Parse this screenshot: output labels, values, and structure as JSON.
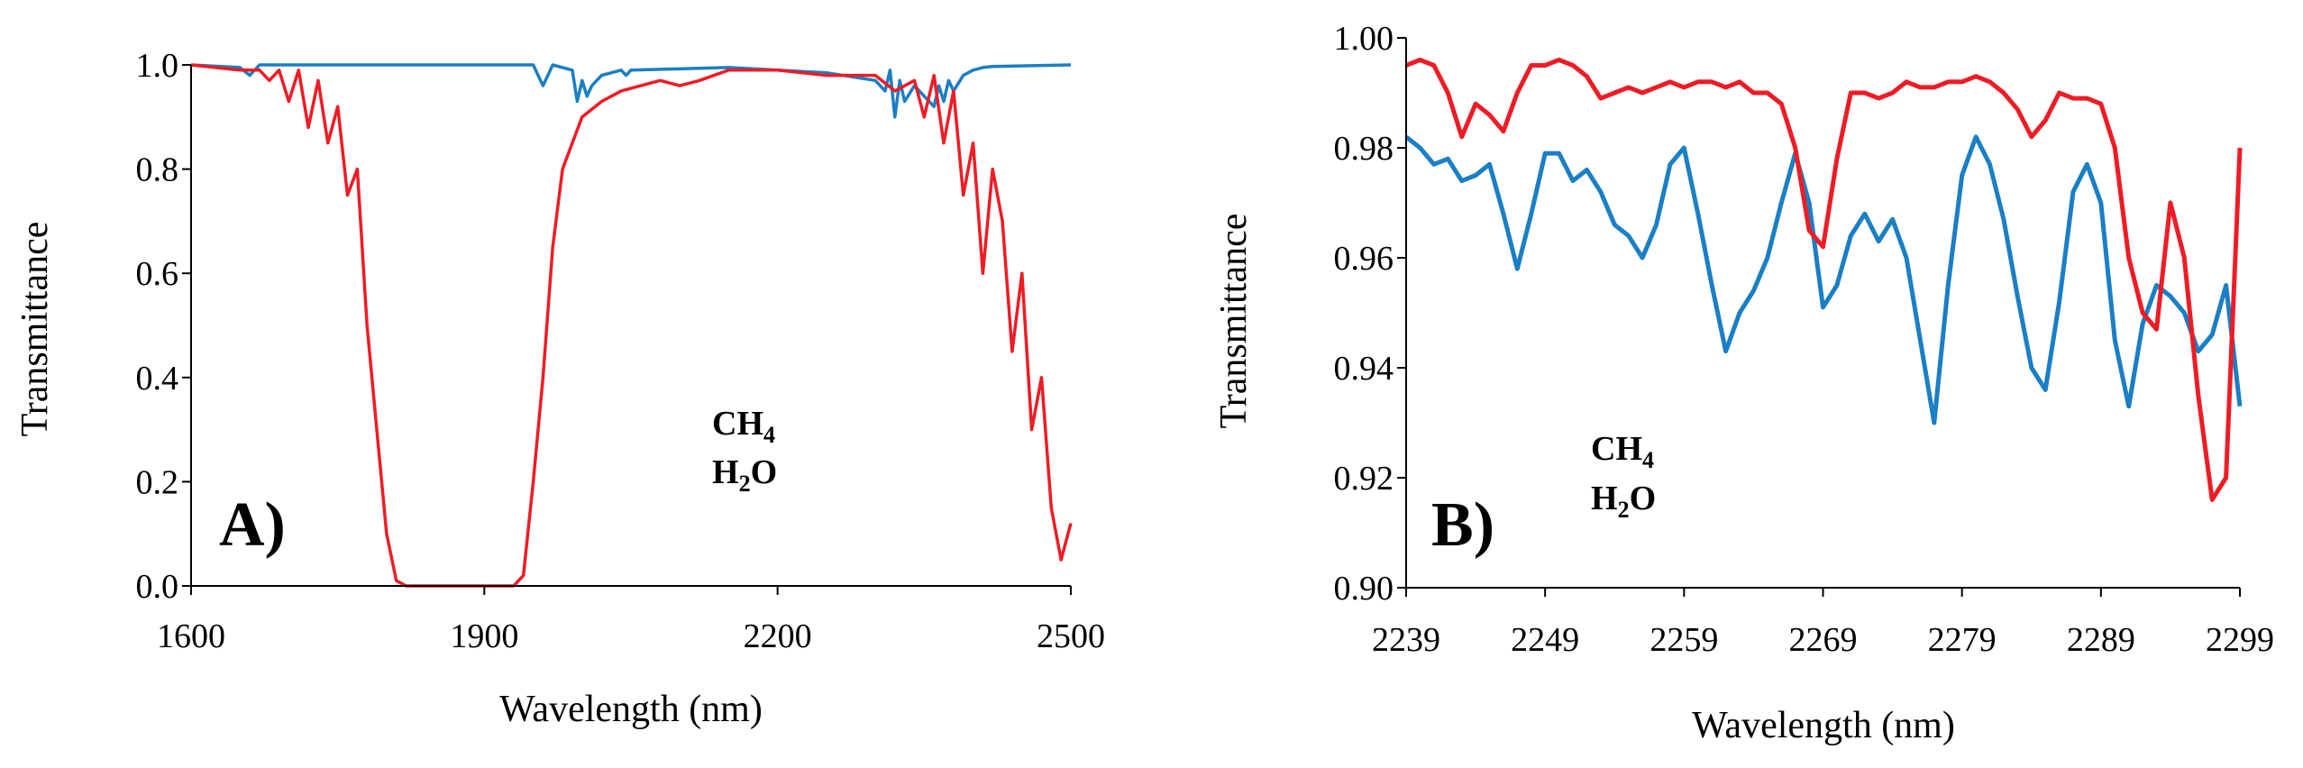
{
  "chart_data": [
    {
      "type": "line",
      "panel_label": "A)",
      "xlabel": "Wavelength (nm)",
      "ylabel": "Transmittance",
      "xlim": [
        1600,
        2500
      ],
      "ylim": [
        0.0,
        1.0
      ],
      "xticks": [
        "1600",
        "1900",
        "2200",
        "2500"
      ],
      "yticks": [
        "0.0",
        "0.2",
        "0.4",
        "0.6",
        "0.8",
        "1.0"
      ],
      "grid": false,
      "legend_position": "center-right",
      "series": [
        {
          "name": "CH4",
          "label_main": "CH",
          "label_sub": "4",
          "color": "#1a7fc4",
          "x": [
            1600,
            1650,
            1660,
            1665,
            1670,
            1700,
            1950,
            1955,
            1960,
            1965,
            1970,
            1990,
            1995,
            2000,
            2005,
            2010,
            2020,
            2040,
            2045,
            2050,
            2150,
            2200,
            2250,
            2300,
            2310,
            2315,
            2320,
            2325,
            2330,
            2340,
            2350,
            2360,
            2365,
            2370,
            2375,
            2380,
            2390,
            2400,
            2410,
            2420,
            2500
          ],
          "values": [
            1.0,
            0.995,
            0.98,
            0.99,
            1.0,
            1.0,
            1.0,
            0.98,
            0.96,
            0.98,
            1.0,
            0.99,
            0.93,
            0.97,
            0.94,
            0.96,
            0.98,
            0.99,
            0.98,
            0.99,
            0.995,
            0.99,
            0.985,
            0.97,
            0.95,
            0.99,
            0.9,
            0.97,
            0.93,
            0.96,
            0.94,
            0.92,
            0.96,
            0.93,
            0.97,
            0.95,
            0.98,
            0.99,
            0.995,
            0.997,
            1.0
          ]
        },
        {
          "name": "H2O",
          "label_main": "H",
          "label_sub": "2",
          "label_tail": "O",
          "color": "#ee1c25",
          "x": [
            1600,
            1650,
            1670,
            1680,
            1690,
            1700,
            1710,
            1720,
            1730,
            1740,
            1750,
            1760,
            1770,
            1780,
            1790,
            1800,
            1810,
            1820,
            1850,
            1900,
            1930,
            1940,
            1950,
            1960,
            1970,
            1980,
            1990,
            2000,
            2020,
            2040,
            2060,
            2080,
            2100,
            2120,
            2150,
            2200,
            2250,
            2300,
            2320,
            2340,
            2350,
            2360,
            2370,
            2380,
            2390,
            2400,
            2410,
            2420,
            2430,
            2440,
            2450,
            2460,
            2470,
            2480,
            2490,
            2500
          ],
          "values": [
            1.0,
            0.99,
            0.99,
            0.97,
            0.99,
            0.93,
            0.99,
            0.88,
            0.97,
            0.85,
            0.92,
            0.75,
            0.8,
            0.5,
            0.3,
            0.1,
            0.01,
            0.0,
            0.0,
            0.0,
            0.0,
            0.02,
            0.2,
            0.4,
            0.65,
            0.8,
            0.85,
            0.9,
            0.93,
            0.95,
            0.96,
            0.97,
            0.96,
            0.97,
            0.99,
            0.99,
            0.98,
            0.98,
            0.95,
            0.97,
            0.9,
            0.98,
            0.85,
            0.95,
            0.75,
            0.85,
            0.6,
            0.8,
            0.7,
            0.45,
            0.6,
            0.3,
            0.4,
            0.15,
            0.05,
            0.12
          ]
        }
      ]
    },
    {
      "type": "line",
      "panel_label": "B)",
      "xlabel": "Wavelength (nm)",
      "ylabel": "Transmittance",
      "xlim": [
        2239,
        2299
      ],
      "ylim": [
        0.9,
        1.0
      ],
      "xticks": [
        "2239",
        "2249",
        "2259",
        "2269",
        "2279",
        "2289",
        "2299"
      ],
      "yticks": [
        "0.90",
        "0.92",
        "0.94",
        "0.96",
        "0.98",
        "1.00"
      ],
      "grid": false,
      "legend_position": "bottom-left",
      "series": [
        {
          "name": "CH4",
          "label_main": "CH",
          "label_sub": "4",
          "color": "#1a7fc4",
          "x": [
            2239,
            2240,
            2241,
            2242,
            2243,
            2244,
            2245,
            2246,
            2247,
            2248,
            2249,
            2250,
            2251,
            2252,
            2253,
            2254,
            2255,
            2256,
            2257,
            2258,
            2259,
            2260,
            2261,
            2262,
            2263,
            2264,
            2265,
            2266,
            2267,
            2268,
            2269,
            2270,
            2271,
            2272,
            2273,
            2274,
            2275,
            2276,
            2277,
            2278,
            2279,
            2280,
            2281,
            2282,
            2283,
            2284,
            2285,
            2286,
            2287,
            2288,
            2289,
            2290,
            2291,
            2292,
            2293,
            2294,
            2295,
            2296,
            2297,
            2298,
            2299
          ],
          "values": [
            0.982,
            0.98,
            0.977,
            0.978,
            0.974,
            0.975,
            0.977,
            0.968,
            0.958,
            0.968,
            0.979,
            0.979,
            0.974,
            0.976,
            0.972,
            0.966,
            0.964,
            0.96,
            0.966,
            0.977,
            0.98,
            0.968,
            0.955,
            0.943,
            0.95,
            0.954,
            0.96,
            0.97,
            0.979,
            0.97,
            0.951,
            0.955,
            0.964,
            0.968,
            0.963,
            0.967,
            0.96,
            0.945,
            0.93,
            0.955,
            0.975,
            0.982,
            0.977,
            0.967,
            0.953,
            0.94,
            0.936,
            0.952,
            0.972,
            0.977,
            0.97,
            0.945,
            0.933,
            0.948,
            0.955,
            0.953,
            0.95,
            0.943,
            0.946,
            0.955,
            0.933
          ]
        },
        {
          "name": "H2O",
          "label_main": "H",
          "label_sub": "2",
          "label_tail": "O",
          "color": "#ee1c25",
          "x": [
            2239,
            2240,
            2241,
            2242,
            2243,
            2244,
            2245,
            2246,
            2247,
            2248,
            2249,
            2250,
            2251,
            2252,
            2253,
            2254,
            2255,
            2256,
            2257,
            2258,
            2259,
            2260,
            2261,
            2262,
            2263,
            2264,
            2265,
            2266,
            2267,
            2268,
            2269,
            2270,
            2271,
            2272,
            2273,
            2274,
            2275,
            2276,
            2277,
            2278,
            2279,
            2280,
            2281,
            2282,
            2283,
            2284,
            2285,
            2286,
            2287,
            2288,
            2289,
            2290,
            2291,
            2292,
            2293,
            2294,
            2295,
            2296,
            2297,
            2298,
            2299
          ],
          "values": [
            0.995,
            0.996,
            0.995,
            0.99,
            0.982,
            0.988,
            0.986,
            0.983,
            0.99,
            0.995,
            0.995,
            0.996,
            0.995,
            0.993,
            0.989,
            0.99,
            0.991,
            0.99,
            0.991,
            0.992,
            0.991,
            0.992,
            0.992,
            0.991,
            0.992,
            0.99,
            0.99,
            0.988,
            0.98,
            0.965,
            0.962,
            0.978,
            0.99,
            0.99,
            0.989,
            0.99,
            0.992,
            0.991,
            0.991,
            0.992,
            0.992,
            0.993,
            0.992,
            0.99,
            0.987,
            0.982,
            0.985,
            0.99,
            0.989,
            0.989,
            0.988,
            0.98,
            0.96,
            0.95,
            0.947,
            0.97,
            0.96,
            0.935,
            0.916,
            0.92,
            0.98
          ]
        }
      ]
    }
  ]
}
